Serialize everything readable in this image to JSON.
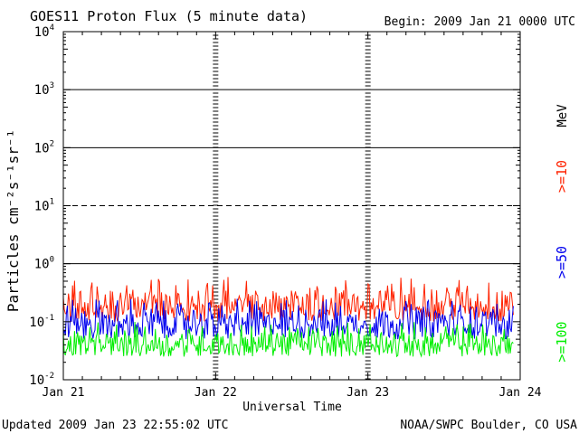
{
  "chart_data": {
    "type": "line",
    "title": "GOES11 Proton Flux (5 minute data)",
    "begin_label": "Begin: 2009 Jan 21 0000 UTC",
    "xlabel": "Universal Time",
    "ylabel": "Particles cm⁻²s⁻¹sr⁻¹",
    "y_scale": "log",
    "ylim": [
      0.01,
      10000
    ],
    "y_ticks": [
      {
        "value": 0.01,
        "base": "10",
        "exp": "-2"
      },
      {
        "value": 0.1,
        "base": "10",
        "exp": "-1"
      },
      {
        "value": 1,
        "base": "10",
        "exp": "0"
      },
      {
        "value": 10,
        "base": "10",
        "exp": "1"
      },
      {
        "value": 100,
        "base": "10",
        "exp": "2"
      },
      {
        "value": 1000,
        "base": "10",
        "exp": "3"
      },
      {
        "value": 10000,
        "base": "10",
        "exp": "4"
      }
    ],
    "x_ticks": [
      "Jan 21",
      "Jan 22",
      "Jan 23",
      "Jan 24"
    ],
    "xlim_days": [
      0,
      3
    ],
    "data_end_day": 2.955,
    "threshold_lines": [
      {
        "value": 1,
        "style": "solid"
      },
      {
        "value": 10,
        "style": "dashed"
      },
      {
        "value": 100,
        "style": "solid"
      },
      {
        "value": 1000,
        "style": "solid"
      }
    ],
    "unit_label": "MeV",
    "series": [
      {
        "name": ">=10",
        "color": "#ff2200",
        "base_level": 0.18,
        "min": 0.1,
        "max": 0.6
      },
      {
        "name": ">=50",
        "color": "#0000ee",
        "base_level": 0.09,
        "min": 0.05,
        "max": 0.25
      },
      {
        "name": ">=100",
        "color": "#00ee00",
        "base_level": 0.04,
        "min": 0.025,
        "max": 0.1
      }
    ]
  },
  "footer": {
    "updated": "Updated 2009 Jan 23 22:55:02 UTC",
    "credit": "NOAA/SWPC Boulder, CO USA"
  }
}
